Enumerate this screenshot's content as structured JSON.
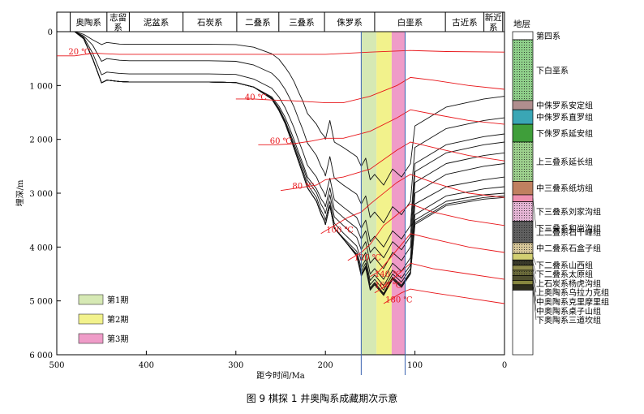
{
  "caption": "图 9   棋探 1 井奥陶系成藏期次示意",
  "chart_data": {
    "type": "line",
    "title": "",
    "xlabel": "距今时间/Ma",
    "ylabel": "埋深/m",
    "xlim": [
      500,
      0
    ],
    "ylim": [
      0,
      6000
    ],
    "x_ticks": [
      "500",
      "400",
      "300",
      "200",
      "100",
      "0"
    ],
    "y_ticks": [
      "0",
      "1 000",
      "2 000",
      "3 000",
      "4 000",
      "5 000",
      "6 000"
    ],
    "periods": [
      {
        "label": "奥陶系",
        "start": 485,
        "end": 444
      },
      {
        "label": "志留系",
        "start": 444,
        "end": 419
      },
      {
        "label": "泥盆系",
        "start": 419,
        "end": 359
      },
      {
        "label": "石炭系",
        "start": 359,
        "end": 299
      },
      {
        "label": "二叠系",
        "start": 299,
        "end": 252
      },
      {
        "label": "三叠系",
        "start": 252,
        "end": 201
      },
      {
        "label": "侏罗系",
        "start": 201,
        "end": 145
      },
      {
        "label": "白垩系",
        "start": 145,
        "end": 66
      },
      {
        "label": "古近系",
        "start": 66,
        "end": 23
      },
      {
        "label": "新近系",
        "start": 23,
        "end": 2
      }
    ],
    "charge_periods": [
      {
        "name": "第1期",
        "start": 160,
        "end": 143,
        "color": "#d6e9b4"
      },
      {
        "name": "第2期",
        "start": 143,
        "end": 126,
        "color": "#f2f28c"
      },
      {
        "name": "第3期",
        "start": 126,
        "end": 111,
        "color": "#ef9cc8"
      }
    ],
    "vlines": [
      160,
      111
    ],
    "burial_x": [
      480,
      470,
      460,
      450,
      444,
      430,
      419,
      380,
      330,
      300,
      280,
      260,
      252,
      245,
      240,
      235,
      230,
      225,
      220,
      210,
      205,
      201,
      200,
      195,
      190,
      180,
      165,
      160,
      155,
      150,
      145,
      135,
      125,
      115,
      105,
      100,
      65,
      23,
      0
    ],
    "burial_series": [
      {
        "depth": [
          0,
          0,
          0,
          0,
          0,
          0,
          0,
          0,
          0,
          0,
          0,
          0,
          0,
          0,
          0,
          0,
          0,
          0,
          0,
          0,
          0,
          0,
          0,
          0,
          0,
          0,
          0,
          0,
          0,
          0,
          0,
          0,
          0,
          0,
          0,
          0,
          0,
          0,
          0
        ]
      },
      {
        "depth": [
          0,
          50,
          150,
          240,
          200,
          230,
          235,
          235,
          235,
          240,
          290,
          410,
          510,
          660,
          780,
          930,
          1120,
          1300,
          1520,
          1720,
          1870,
          1950,
          2000,
          1650,
          2050,
          2150,
          2320,
          2500,
          2350,
          2750,
          2650,
          2850,
          2550,
          2700,
          2450,
          1750,
          1400,
          1250,
          1200
        ]
      },
      {
        "depth": [
          0,
          80,
          250,
          550,
          500,
          530,
          540,
          540,
          540,
          550,
          620,
          770,
          900,
          1070,
          1230,
          1400,
          1620,
          1830,
          2070,
          2300,
          2500,
          2620,
          2680,
          2320,
          2720,
          2850,
          3020,
          3200,
          3050,
          3450,
          3350,
          3550,
          3250,
          3400,
          3150,
          2150,
          1800,
          1650,
          1600
        ]
      },
      {
        "depth": [
          0,
          100,
          400,
          800,
          750,
          775,
          785,
          785,
          785,
          795,
          880,
          1050,
          1210,
          1410,
          1590,
          1790,
          2020,
          2240,
          2480,
          2700,
          2890,
          3010,
          3070,
          2720,
          3120,
          3260,
          3450,
          3650,
          3500,
          3900,
          3800,
          4000,
          3700,
          3850,
          3600,
          2450,
          2100,
          1950,
          1900
        ]
      },
      {
        "depth": [
          0,
          120,
          500,
          950,
          900,
          925,
          935,
          935,
          935,
          945,
          1030,
          1210,
          1380,
          1590,
          1790,
          2010,
          2240,
          2460,
          2700,
          2920,
          3100,
          3200,
          3250,
          2900,
          3300,
          3450,
          3650,
          3850,
          3700,
          4100,
          4000,
          4200,
          3900,
          4050,
          3800,
          2600,
          2250,
          2100,
          2050
        ]
      },
      {
        "depth": [
          0,
          130,
          500,
          950,
          900,
          925,
          935,
          935,
          935,
          945,
          1030,
          1230,
          1420,
          1650,
          1860,
          2080,
          2300,
          2520,
          2760,
          2990,
          3200,
          3320,
          3380,
          3030,
          3440,
          3600,
          3820,
          4050,
          3900,
          4300,
          4200,
          4400,
          4100,
          4250,
          4000,
          2800,
          2450,
          2300,
          2250
        ]
      },
      {
        "depth": [
          0,
          130,
          500,
          950,
          900,
          925,
          935,
          935,
          935,
          945,
          1030,
          1240,
          1440,
          1680,
          1900,
          2130,
          2360,
          2590,
          2840,
          3080,
          3310,
          3440,
          3500,
          3150,
          3560,
          3740,
          3980,
          4250,
          4100,
          4500,
          4400,
          4600,
          4300,
          4450,
          4200,
          3000,
          2650,
          2500,
          2450
        ]
      },
      {
        "depth": [
          0,
          130,
          500,
          950,
          900,
          925,
          935,
          935,
          935,
          945,
          1030,
          1250,
          1460,
          1700,
          1930,
          2170,
          2410,
          2650,
          2900,
          3150,
          3380,
          3520,
          3580,
          3230,
          3650,
          3830,
          4080,
          4380,
          4230,
          4620,
          4520,
          4720,
          4430,
          4580,
          4330,
          3200,
          2880,
          2750,
          2700
        ]
      },
      {
        "depth": [
          0,
          130,
          500,
          950,
          900,
          925,
          935,
          935,
          935,
          945,
          1030,
          1250,
          1460,
          1700,
          1930,
          2170,
          2410,
          2650,
          2900,
          3150,
          3380,
          3520,
          3580,
          3230,
          3650,
          3850,
          4130,
          4450,
          4300,
          4700,
          4600,
          4800,
          4500,
          4650,
          4400,
          3400,
          3050,
          2920,
          2880
        ]
      },
      {
        "depth": [
          0,
          130,
          500,
          950,
          900,
          925,
          935,
          935,
          935,
          945,
          1030,
          1250,
          1460,
          1700,
          1930,
          2170,
          2410,
          2650,
          2900,
          3150,
          3380,
          3520,
          3580,
          3230,
          3650,
          3850,
          4150,
          4500,
          4350,
          4760,
          4660,
          4860,
          4560,
          4710,
          4460,
          3500,
          3150,
          3030,
          3000
        ]
      },
      {
        "depth": [
          0,
          130,
          500,
          950,
          900,
          925,
          935,
          935,
          935,
          945,
          1030,
          1250,
          1460,
          1700,
          1930,
          2170,
          2410,
          2650,
          2900,
          3150,
          3380,
          3520,
          3580,
          3230,
          3650,
          3850,
          4160,
          4520,
          4370,
          4780,
          4680,
          4880,
          4580,
          4730,
          4480,
          3550,
          3200,
          3080,
          3050
        ]
      },
      {
        "depth": [
          0,
          130,
          500,
          950,
          900,
          925,
          935,
          935,
          935,
          945,
          1030,
          1250,
          1460,
          1700,
          1930,
          2170,
          2410,
          2650,
          2900,
          3150,
          3380,
          3520,
          3580,
          3230,
          3650,
          3850,
          4170,
          4540,
          4390,
          4800,
          4700,
          4900,
          4600,
          4750,
          4500,
          3580,
          3230,
          3110,
          3080
        ]
      }
    ],
    "isotherms": [
      {
        "label": "20 ℃",
        "label_x": 487,
        "label_y": 420,
        "x": [
          500,
          480,
          460,
          430,
          380,
          300,
          200,
          150,
          105,
          65,
          0
        ],
        "depth": [
          450,
          450,
          400,
          420,
          420,
          420,
          420,
          380,
          350,
          370,
          380
        ]
      },
      {
        "label": "40 ℃",
        "label_x": 290,
        "label_y": 1270,
        "x": [
          300,
          280,
          260,
          240,
          220,
          200,
          180,
          150,
          120,
          105,
          80,
          40,
          0
        ],
        "depth": [
          1250,
          1250,
          1270,
          1280,
          1300,
          1320,
          1320,
          1200,
          1000,
          850,
          900,
          1000,
          1070
        ]
      },
      {
        "label": "60 ℃",
        "label_x": 262,
        "label_y": 2080,
        "x": [
          275,
          255,
          235,
          215,
          200,
          180,
          150,
          120,
          105,
          80,
          40,
          0
        ],
        "depth": [
          2100,
          2100,
          2080,
          2030,
          1980,
          1980,
          1850,
          1600,
          1450,
          1530,
          1650,
          1720
        ]
      },
      {
        "label": "80 ℃",
        "label_x": 237,
        "label_y": 2920,
        "x": [
          250,
          230,
          210,
          200,
          180,
          150,
          120,
          105,
          80,
          40,
          0
        ],
        "depth": [
          2950,
          2900,
          2850,
          2750,
          2700,
          2550,
          2200,
          2050,
          2150,
          2300,
          2400
        ]
      },
      {
        "label": "100 ℃",
        "label_x": 199,
        "label_y": 3730,
        "x": [
          205,
          190,
          175,
          160,
          150,
          120,
          105,
          80,
          40,
          0
        ],
        "depth": [
          3750,
          3600,
          3450,
          3350,
          3200,
          2800,
          2650,
          2800,
          3000,
          3080
        ]
      },
      {
        "label": "120 ℃",
        "label_x": 168,
        "label_y": 4240,
        "x": [
          175,
          160,
          150,
          135,
          120,
          105,
          80,
          40,
          0
        ],
        "depth": [
          4250,
          4100,
          3950,
          3600,
          3400,
          3200,
          3350,
          3500,
          3600
        ]
      },
      {
        "label": "140 ℃",
        "label_x": 145,
        "label_y": 4550,
        "x": [
          150,
          140,
          130,
          120,
          110,
          105,
          80,
          40,
          0
        ],
        "depth": [
          4550,
          4450,
          4250,
          4050,
          3850,
          3750,
          3850,
          4000,
          4100
        ]
      },
      {
        "label": "160 ℃",
        "label_x": 145,
        "label_y": 4760,
        "x": [
          145,
          135,
          125,
          115,
          105,
          80,
          40,
          0
        ],
        "depth": [
          4850,
          4750,
          4600,
          4450,
          4300,
          4400,
          4500,
          4600
        ]
      },
      {
        "label": "180 ℃",
        "label_x": 133,
        "label_y": 5030,
        "x": [
          135,
          125,
          115,
          105,
          80,
          40,
          0
        ],
        "depth": [
          5050,
          4950,
          4850,
          4780,
          4850,
          4950,
          5050
        ]
      }
    ],
    "legend": [
      {
        "label": "第1期",
        "color": "#d6e9b4"
      },
      {
        "label": "第2期",
        "color": "#f2f28c"
      },
      {
        "label": "第3期",
        "color": "#ef9cc8"
      }
    ],
    "strata": {
      "title": "地层",
      "units": [
        {
          "label": "第四系",
          "top": 0,
          "bottom": 150,
          "color": "#ffffff",
          "pattern": "none"
        },
        {
          "label": "下白垩系",
          "top": 150,
          "bottom": 1280,
          "color": "#8fd08a",
          "pattern": "dots"
        },
        {
          "label": "中侏罗系安定组",
          "top": 1280,
          "bottom": 1450,
          "color": "#b08e8e",
          "pattern": "none"
        },
        {
          "label": "中侏罗系直罗组",
          "top": 1450,
          "bottom": 1720,
          "color": "#3aa6b5",
          "pattern": "none"
        },
        {
          "label": "下侏罗系延安组",
          "top": 1720,
          "bottom": 2050,
          "color": "#3f9e3a",
          "pattern": "none"
        },
        {
          "label": "上三叠系延长组",
          "top": 2050,
          "bottom": 2780,
          "color": "#9dd08d",
          "pattern": "dots"
        },
        {
          "label": "中三叠系纸坊组",
          "top": 2780,
          "bottom": 3030,
          "color": "#c08060",
          "pattern": "none"
        },
        {
          "label": "下三叠系和尚沟组",
          "top": 3030,
          "bottom": 3160,
          "color": "#ef8fb0",
          "pattern": "none"
        },
        {
          "label": "下三叠系刘家沟组",
          "top": 3160,
          "bottom": 3520,
          "color": "#e6b6d6",
          "pattern": "dots"
        },
        {
          "label": "上二叠系石千峰组",
          "top": 3520,
          "bottom": 3920,
          "color": "#606060",
          "pattern": "dots"
        },
        {
          "label": "中二叠系石盒子组",
          "top": 3920,
          "bottom": 4120,
          "color": "#d8c89a",
          "pattern": "dots"
        },
        {
          "label": "下二叠系山西组",
          "top": 4120,
          "bottom": 4240,
          "color": "#d2cf72",
          "pattern": "none"
        },
        {
          "label": "下二叠系太原组",
          "top": 4240,
          "bottom": 4340,
          "color": "#3a3a2a",
          "pattern": "dots"
        },
        {
          "label": "上石炭系杨虎沟组",
          "top": 4340,
          "bottom": 4430,
          "color": "#8e8a4a",
          "pattern": "none"
        },
        {
          "label": "上奥陶系乌拉力克组",
          "top": 4430,
          "bottom": 4530,
          "color": "#6a6a3a",
          "pattern": "dots"
        },
        {
          "label": "中奥陶系克里摩里组",
          "top": 4530,
          "bottom": 4620,
          "color": "#4f4f2f",
          "pattern": "none"
        },
        {
          "label": "中奥陶系桌子山组",
          "top": 4620,
          "bottom": 4700,
          "color": "#86863e",
          "pattern": "none"
        },
        {
          "label": "下奥陶系三道坎组",
          "top": 4700,
          "bottom": 4800,
          "color": "#2d2d1d",
          "pattern": "none"
        },
        {
          "label": "",
          "top": 4800,
          "bottom": 6000,
          "color": "#ffffff",
          "pattern": "none"
        }
      ]
    }
  }
}
